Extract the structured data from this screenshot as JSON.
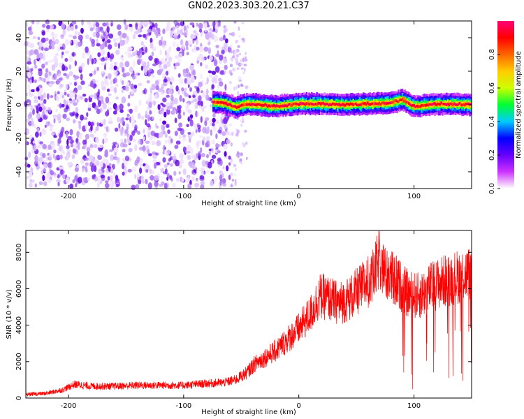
{
  "title": "GN02.2023.303.20.21.C37",
  "chart_data": [
    {
      "type": "heatmap",
      "xlabel": "Height of straight line (km)",
      "ylabel": "Frequency (Hz)",
      "xlim": [
        -237,
        150
      ],
      "ylim": [
        -50,
        50
      ],
      "xticks": [
        -200,
        -100,
        0,
        100
      ],
      "xtick_labels": [
        "-200",
        "-100",
        "0",
        "100"
      ],
      "yticks": [
        -40,
        -20,
        0,
        20,
        40
      ],
      "ytick_labels": [
        "-40",
        "-20",
        "0",
        "20",
        "40"
      ],
      "noise_region_x": [
        -237,
        -60
      ],
      "sparse_region_x": [
        -60,
        -45
      ],
      "signal_start_x": -75,
      "signal_frequency_track": [
        {
          "x": -75,
          "f": 1.5
        },
        {
          "x": -65,
          "f": 1.0
        },
        {
          "x": -55,
          "f": -1.5
        },
        {
          "x": -45,
          "f": 0.5
        },
        {
          "x": -20,
          "f": -1.0
        },
        {
          "x": 0,
          "f": 0.5
        },
        {
          "x": 20,
          "f": 0.5
        },
        {
          "x": 40,
          "f": 0.0
        },
        {
          "x": 60,
          "f": 0.5
        },
        {
          "x": 80,
          "f": 1.0
        },
        {
          "x": 90,
          "f": 3.0
        },
        {
          "x": 100,
          "f": -1.0
        },
        {
          "x": 120,
          "f": 0.5
        },
        {
          "x": 150,
          "f": 0.0
        }
      ],
      "colorbar": {
        "label": "Normalized spectral amplitude",
        "range": [
          0.0,
          1.0
        ],
        "ticks": [
          0.0,
          0.2,
          0.4,
          0.6,
          0.8
        ],
        "tick_labels": [
          "0.0",
          "0.2",
          "0.4",
          "0.6",
          "0.8"
        ],
        "colors": [
          "#ffffff",
          "#cc33ff",
          "#6600ff",
          "#0000ff",
          "#00ccff",
          "#00ff33",
          "#ccff00",
          "#ffcc00",
          "#ff6600",
          "#ff0000",
          "#ff0077"
        ]
      }
    },
    {
      "type": "line",
      "xlabel": "Height of straight line (km)",
      "ylabel": "SNR (10 * v/v)",
      "xlim": [
        -237,
        150
      ],
      "ylim": [
        0,
        9200
      ],
      "xticks": [
        -200,
        -100,
        0,
        100
      ],
      "xtick_labels": [
        "-200",
        "-100",
        "0",
        "100"
      ],
      "yticks": [
        0,
        2000,
        4000,
        6000,
        8000
      ],
      "ytick_labels": [
        "0",
        "2000",
        "4000",
        "6000",
        "8000"
      ],
      "color": "#ff0000",
      "series": [
        {
          "name": "SNR",
          "x": [
            -237,
            -220,
            -205,
            -195,
            -180,
            -160,
            -140,
            -120,
            -100,
            -80,
            -65,
            -55,
            -45,
            -38,
            -30,
            -20,
            -10,
            0,
            10,
            18,
            25,
            35,
            45,
            55,
            65,
            70,
            75,
            85,
            95,
            105,
            115,
            125,
            135,
            145,
            150
          ],
          "y": [
            200,
            250,
            450,
            750,
            650,
            650,
            700,
            700,
            700,
            800,
            850,
            1000,
            1400,
            1900,
            2200,
            2600,
            3200,
            3800,
            4600,
            5600,
            5500,
            5200,
            5500,
            6100,
            6700,
            7700,
            6800,
            6400,
            5700,
            5600,
            6100,
            6400,
            6600,
            6800,
            6800
          ]
        }
      ]
    }
  ]
}
